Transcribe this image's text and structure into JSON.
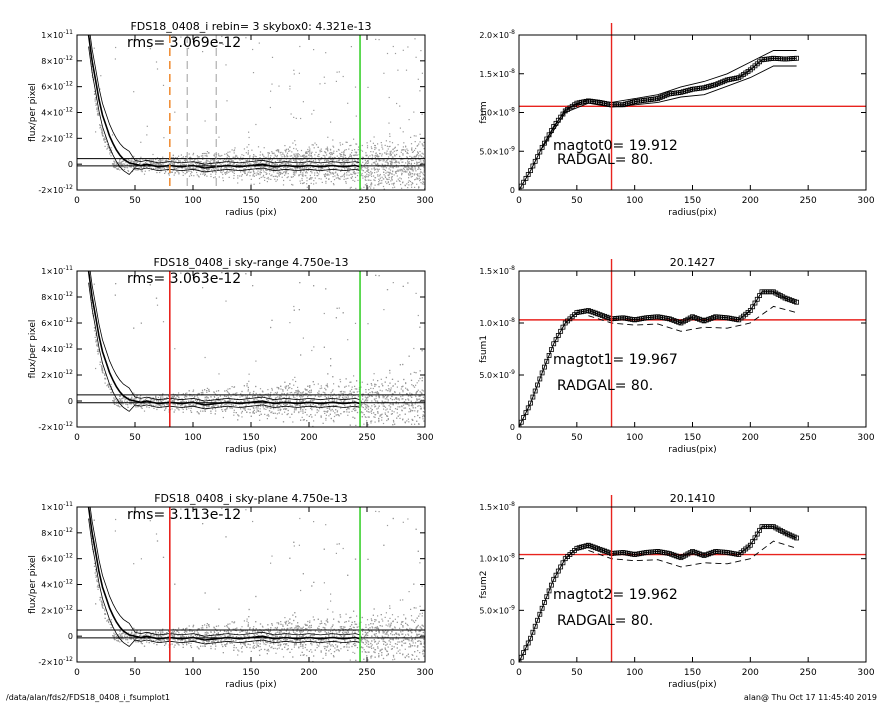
{
  "footer": {
    "path": "/data/alan/fds2/FDS18_0408_i_fsumplot1",
    "stamp": "alan@  Thu Oct 17 11:45:40 2019"
  },
  "colors": {
    "marker_orange": "#f0903a",
    "red": "#e8231e",
    "green": "#3ad12e",
    "gray": "#a0a0a0"
  },
  "chart_data": [
    {
      "type": "scatter",
      "title": "FDS18_0408_i rebin= 3    skybox0:  4.321e-13",
      "rms_text": "rms= 3.069e-12",
      "xlabel": "radius (pix)",
      "ylabel": "flux/per pixel",
      "xlim": [
        0,
        300
      ],
      "ylim": [
        -2e-12,
        1e-11
      ],
      "xticks": [
        "0",
        "50",
        "100",
        "150",
        "200",
        "250",
        "300"
      ],
      "yticks": [
        {
          "v": 1e-11,
          "mant": "1×10",
          "exp": "-11"
        },
        {
          "v": 8e-12,
          "mant": "8×10",
          "exp": "-12"
        },
        {
          "v": 6e-12,
          "mant": "6×10",
          "exp": "-12"
        },
        {
          "v": 4e-12,
          "mant": "4×10",
          "exp": "-12"
        },
        {
          "v": 2e-12,
          "mant": "2×10",
          "exp": "-12"
        },
        {
          "v": 0,
          "mant": "0",
          "exp": ""
        },
        {
          "v": -2e-12,
          "mant": "-2×10",
          "exp": "-12"
        }
      ],
      "hlines": [
        4.3e-13,
        -1.3e-13
      ],
      "vlines": [
        {
          "x": 80,
          "color": "orange",
          "style": "dash"
        },
        {
          "x": 95,
          "color": "gray",
          "style": "dash"
        },
        {
          "x": 120,
          "color": "gray",
          "style": "dash"
        },
        {
          "x": 244,
          "color": "green",
          "style": "solid"
        }
      ],
      "profile": {
        "x": [
          10,
          13,
          16,
          19,
          22,
          25,
          28,
          31,
          34,
          37,
          40,
          45,
          50,
          55,
          60,
          70,
          80,
          90,
          100,
          110,
          120,
          130,
          140,
          150,
          160,
          170,
          180,
          190,
          200,
          210,
          220,
          230,
          240,
          244
        ],
        "y": [
          1e-11,
          8e-12,
          6.5e-12,
          5e-12,
          3.8e-12,
          3e-12,
          2.2e-12,
          1.6e-12,
          1.1e-12,
          7e-13,
          4e-13,
          1e-13,
          0,
          -1e-13,
          0,
          -2e-13,
          -1e-13,
          -2e-13,
          -1e-13,
          -3e-13,
          -2e-13,
          -1e-13,
          -2e-13,
          -1e-13,
          0,
          -2e-13,
          -1e-13,
          -2e-13,
          -1e-13,
          -2e-13,
          -1e-13,
          -2e-13,
          -1e-13,
          -2e-13
        ]
      },
      "scatter_spread": "increasing with radius; dense cloud between -2e-12 and 2e-12"
    },
    {
      "type": "line",
      "title": "",
      "xlabel": "radius(pix)",
      "ylabel": "fsum",
      "xlim": [
        0,
        300
      ],
      "ylim": [
        0,
        2e-08
      ],
      "xticks": [
        "0",
        "50",
        "100",
        "150",
        "200",
        "250",
        "300"
      ],
      "yticks": [
        {
          "v": 2e-08,
          "mant": "2.0×10",
          "exp": "-8"
        },
        {
          "v": 1.5e-08,
          "mant": "1.5×10",
          "exp": "-8"
        },
        {
          "v": 1e-08,
          "mant": "1.0×10",
          "exp": "-8"
        },
        {
          "v": 5e-09,
          "mant": "5.0×10",
          "exp": "-9"
        },
        {
          "v": 0,
          "mant": "0",
          "exp": ""
        }
      ],
      "hline": 1.08e-08,
      "vline": 80,
      "text1": "magtot0=  19.912",
      "text2": "RADGAL=     80.",
      "series": [
        {
          "style": "squares",
          "x": [
            0,
            10,
            20,
            30,
            40,
            50,
            60,
            70,
            80,
            90,
            100,
            110,
            120,
            130,
            140,
            150,
            160,
            170,
            180,
            190,
            200,
            210,
            220,
            230,
            240
          ],
          "y": [
            0,
            2.5e-09,
            5.5e-09,
            8.2e-09,
            1.02e-08,
            1.12e-08,
            1.15e-08,
            1.13e-08,
            1.1e-08,
            1.1e-08,
            1.14e-08,
            1.16e-08,
            1.18e-08,
            1.24e-08,
            1.26e-08,
            1.3e-08,
            1.32e-08,
            1.36e-08,
            1.42e-08,
            1.45e-08,
            1.55e-08,
            1.68e-08,
            1.7e-08,
            1.69e-08,
            1.7e-08
          ]
        },
        {
          "style": "line",
          "x": [
            20,
            40,
            60,
            80,
            100,
            120,
            140,
            160,
            180,
            200,
            220,
            240
          ],
          "y": [
            5.6e-09,
            1.04e-08,
            1.17e-08,
            1.13e-08,
            1.18e-08,
            1.23e-08,
            1.33e-08,
            1.4e-08,
            1.5e-08,
            1.65e-08,
            1.8e-08,
            1.8e-08
          ]
        },
        {
          "style": "line",
          "x": [
            20,
            40,
            60,
            80,
            100,
            120,
            140,
            160,
            180,
            200,
            220,
            240
          ],
          "y": [
            5.4e-09,
            1e-08,
            1.12e-08,
            1.07e-08,
            1.1e-08,
            1.13e-08,
            1.2e-08,
            1.23e-08,
            1.34e-08,
            1.45e-08,
            1.6e-08,
            1.6e-08
          ]
        }
      ]
    },
    {
      "type": "scatter",
      "title": "FDS18_0408_i sky-range  4.750e-13",
      "rms_text": "rms= 3.063e-12",
      "xlabel": "radius (pix)",
      "ylabel": "flux/per pixel",
      "xlim": [
        0,
        300
      ],
      "ylim": [
        -2e-12,
        1e-11
      ],
      "xticks": [
        "0",
        "50",
        "100",
        "150",
        "200",
        "250",
        "300"
      ],
      "yticks": [
        {
          "v": 1e-11,
          "mant": "1×10",
          "exp": "-11"
        },
        {
          "v": 8e-12,
          "mant": "8×10",
          "exp": "-12"
        },
        {
          "v": 6e-12,
          "mant": "6×10",
          "exp": "-12"
        },
        {
          "v": 4e-12,
          "mant": "4×10",
          "exp": "-12"
        },
        {
          "v": 2e-12,
          "mant": "2×10",
          "exp": "-12"
        },
        {
          "v": 0,
          "mant": "0",
          "exp": ""
        },
        {
          "v": -2e-12,
          "mant": "-2×10",
          "exp": "-12"
        }
      ],
      "hlines": [
        4.75e-13,
        -1.3e-13
      ],
      "vlines": [
        {
          "x": 80,
          "color": "red",
          "style": "solid"
        },
        {
          "x": 244,
          "color": "green",
          "style": "solid"
        }
      ],
      "profile": {
        "x": [
          10,
          13,
          16,
          19,
          22,
          25,
          28,
          31,
          34,
          37,
          40,
          45,
          50,
          55,
          60,
          70,
          80,
          90,
          100,
          110,
          120,
          130,
          140,
          150,
          160,
          170,
          180,
          190,
          200,
          210,
          220,
          230,
          240,
          244
        ],
        "y": [
          1e-11,
          8e-12,
          6.5e-12,
          5e-12,
          3.8e-12,
          3e-12,
          2.2e-12,
          1.6e-12,
          1.1e-12,
          7e-13,
          4e-13,
          1e-13,
          0,
          -1e-13,
          0,
          -2e-13,
          -1e-13,
          -2e-13,
          -1e-13,
          -3e-13,
          -2e-13,
          -1e-13,
          -2e-13,
          -1e-13,
          0,
          -2e-13,
          -1e-13,
          -2e-13,
          -1e-13,
          -2e-13,
          -1e-13,
          -2e-13,
          -1e-13,
          -2e-13
        ]
      }
    },
    {
      "type": "line",
      "title": "20.1427",
      "xlabel": "radius(pix)",
      "ylabel": "fsum1",
      "xlim": [
        0,
        300
      ],
      "ylim": [
        0,
        1.5e-08
      ],
      "xticks": [
        "0",
        "50",
        "100",
        "150",
        "200",
        "250",
        "300"
      ],
      "yticks": [
        {
          "v": 1.5e-08,
          "mant": "1.5×10",
          "exp": "-8"
        },
        {
          "v": 1e-08,
          "mant": "1.0×10",
          "exp": "-8"
        },
        {
          "v": 5e-09,
          "mant": "5.0×10",
          "exp": "-9"
        },
        {
          "v": 0,
          "mant": "0",
          "exp": ""
        }
      ],
      "hline": 1.03e-08,
      "vline": 80,
      "text1": "magtot1=  19.967",
      "text2": "RADGAL=     80.",
      "series": [
        {
          "style": "squares",
          "x": [
            0,
            10,
            20,
            30,
            40,
            50,
            60,
            70,
            80,
            90,
            100,
            110,
            120,
            130,
            140,
            150,
            160,
            170,
            180,
            190,
            200,
            210,
            220,
            230,
            240
          ],
          "y": [
            0,
            2.3e-09,
            5.2e-09,
            8e-09,
            1e-08,
            1.1e-08,
            1.12e-08,
            1.08e-08,
            1.04e-08,
            1.05e-08,
            1.03e-08,
            1.05e-08,
            1.06e-08,
            1.04e-08,
            1e-08,
            1.06e-08,
            1.02e-08,
            1.06e-08,
            1.05e-08,
            1.03e-08,
            1.12e-08,
            1.3e-08,
            1.3e-08,
            1.24e-08,
            1.2e-08
          ]
        },
        {
          "style": "dash",
          "x": [
            60,
            80,
            100,
            120,
            140,
            160,
            180,
            200,
            220,
            240
          ],
          "y": [
            1.07e-08,
            1e-08,
            9.8e-09,
            9.9e-09,
            9.2e-09,
            9.6e-09,
            9.5e-09,
            1e-08,
            1.16e-08,
            1.1e-08
          ]
        }
      ]
    },
    {
      "type": "scatter",
      "title": "FDS18_0408_i sky-plane  4.750e-13",
      "rms_text": "rms= 3.113e-12",
      "xlabel": "radius (pix)",
      "ylabel": "flux/per pixel",
      "xlim": [
        0,
        300
      ],
      "ylim": [
        -2e-12,
        1e-11
      ],
      "xticks": [
        "0",
        "50",
        "100",
        "150",
        "200",
        "250",
        "300"
      ],
      "yticks": [
        {
          "v": 1e-11,
          "mant": "1×10",
          "exp": "-11"
        },
        {
          "v": 8e-12,
          "mant": "8×10",
          "exp": "-12"
        },
        {
          "v": 6e-12,
          "mant": "6×10",
          "exp": "-12"
        },
        {
          "v": 4e-12,
          "mant": "4×10",
          "exp": "-12"
        },
        {
          "v": 2e-12,
          "mant": "2×10",
          "exp": "-12"
        },
        {
          "v": 0,
          "mant": "0",
          "exp": ""
        },
        {
          "v": -2e-12,
          "mant": "-2×10",
          "exp": "-12"
        }
      ],
      "hlines": [
        4.75e-13,
        -1.3e-13
      ],
      "vlines": [
        {
          "x": 80,
          "color": "red",
          "style": "solid"
        },
        {
          "x": 244,
          "color": "green",
          "style": "solid"
        }
      ],
      "profile": {
        "x": [
          10,
          13,
          16,
          19,
          22,
          25,
          28,
          31,
          34,
          37,
          40,
          45,
          50,
          55,
          60,
          70,
          80,
          90,
          100,
          110,
          120,
          130,
          140,
          150,
          160,
          170,
          180,
          190,
          200,
          210,
          220,
          230,
          240,
          244
        ],
        "y": [
          1e-11,
          8e-12,
          6.5e-12,
          5e-12,
          3.8e-12,
          3e-12,
          2.2e-12,
          1.6e-12,
          1.1e-12,
          7e-13,
          4e-13,
          1e-13,
          0,
          -1e-13,
          0,
          -2e-13,
          -1e-13,
          -2e-13,
          -1e-13,
          -3e-13,
          -2e-13,
          -1e-13,
          -2e-13,
          -1e-13,
          0,
          -2e-13,
          -1e-13,
          -2e-13,
          -1e-13,
          -2e-13,
          -1e-13,
          -2e-13,
          -1e-13,
          -2e-13
        ]
      }
    },
    {
      "type": "line",
      "title": "20.1410",
      "xlabel": "radius(pix)",
      "ylabel": "fsum2",
      "xlim": [
        0,
        300
      ],
      "ylim": [
        0,
        1.5e-08
      ],
      "xticks": [
        "0",
        "50",
        "100",
        "150",
        "200",
        "250",
        "300"
      ],
      "yticks": [
        {
          "v": 1.5e-08,
          "mant": "1.5×10",
          "exp": "-8"
        },
        {
          "v": 1e-08,
          "mant": "1.0×10",
          "exp": "-8"
        },
        {
          "v": 5e-09,
          "mant": "5.0×10",
          "exp": "-9"
        },
        {
          "v": 0,
          "mant": "0",
          "exp": ""
        }
      ],
      "hline": 1.04e-08,
      "vline": 80,
      "text1": "magtot2=  19.962",
      "text2": "RADGAL=     80.",
      "series": [
        {
          "style": "squares",
          "x": [
            0,
            10,
            20,
            30,
            40,
            50,
            60,
            70,
            80,
            90,
            100,
            110,
            120,
            130,
            140,
            150,
            160,
            170,
            180,
            190,
            200,
            210,
            220,
            230,
            240
          ],
          "y": [
            0,
            2.3e-09,
            5.2e-09,
            8e-09,
            1e-08,
            1.1e-08,
            1.13e-08,
            1.09e-08,
            1.05e-08,
            1.06e-08,
            1.04e-08,
            1.06e-08,
            1.07e-08,
            1.05e-08,
            1.01e-08,
            1.07e-08,
            1.03e-08,
            1.07e-08,
            1.06e-08,
            1.04e-08,
            1.13e-08,
            1.31e-08,
            1.31e-08,
            1.25e-08,
            1.2e-08
          ]
        },
        {
          "style": "dash",
          "x": [
            60,
            80,
            100,
            120,
            140,
            160,
            180,
            200,
            220,
            240
          ],
          "y": [
            1.08e-08,
            1e-08,
            9.8e-09,
            9.9e-09,
            9.2e-09,
            9.6e-09,
            9.5e-09,
            1e-08,
            1.17e-08,
            1.1e-08
          ]
        }
      ]
    }
  ]
}
